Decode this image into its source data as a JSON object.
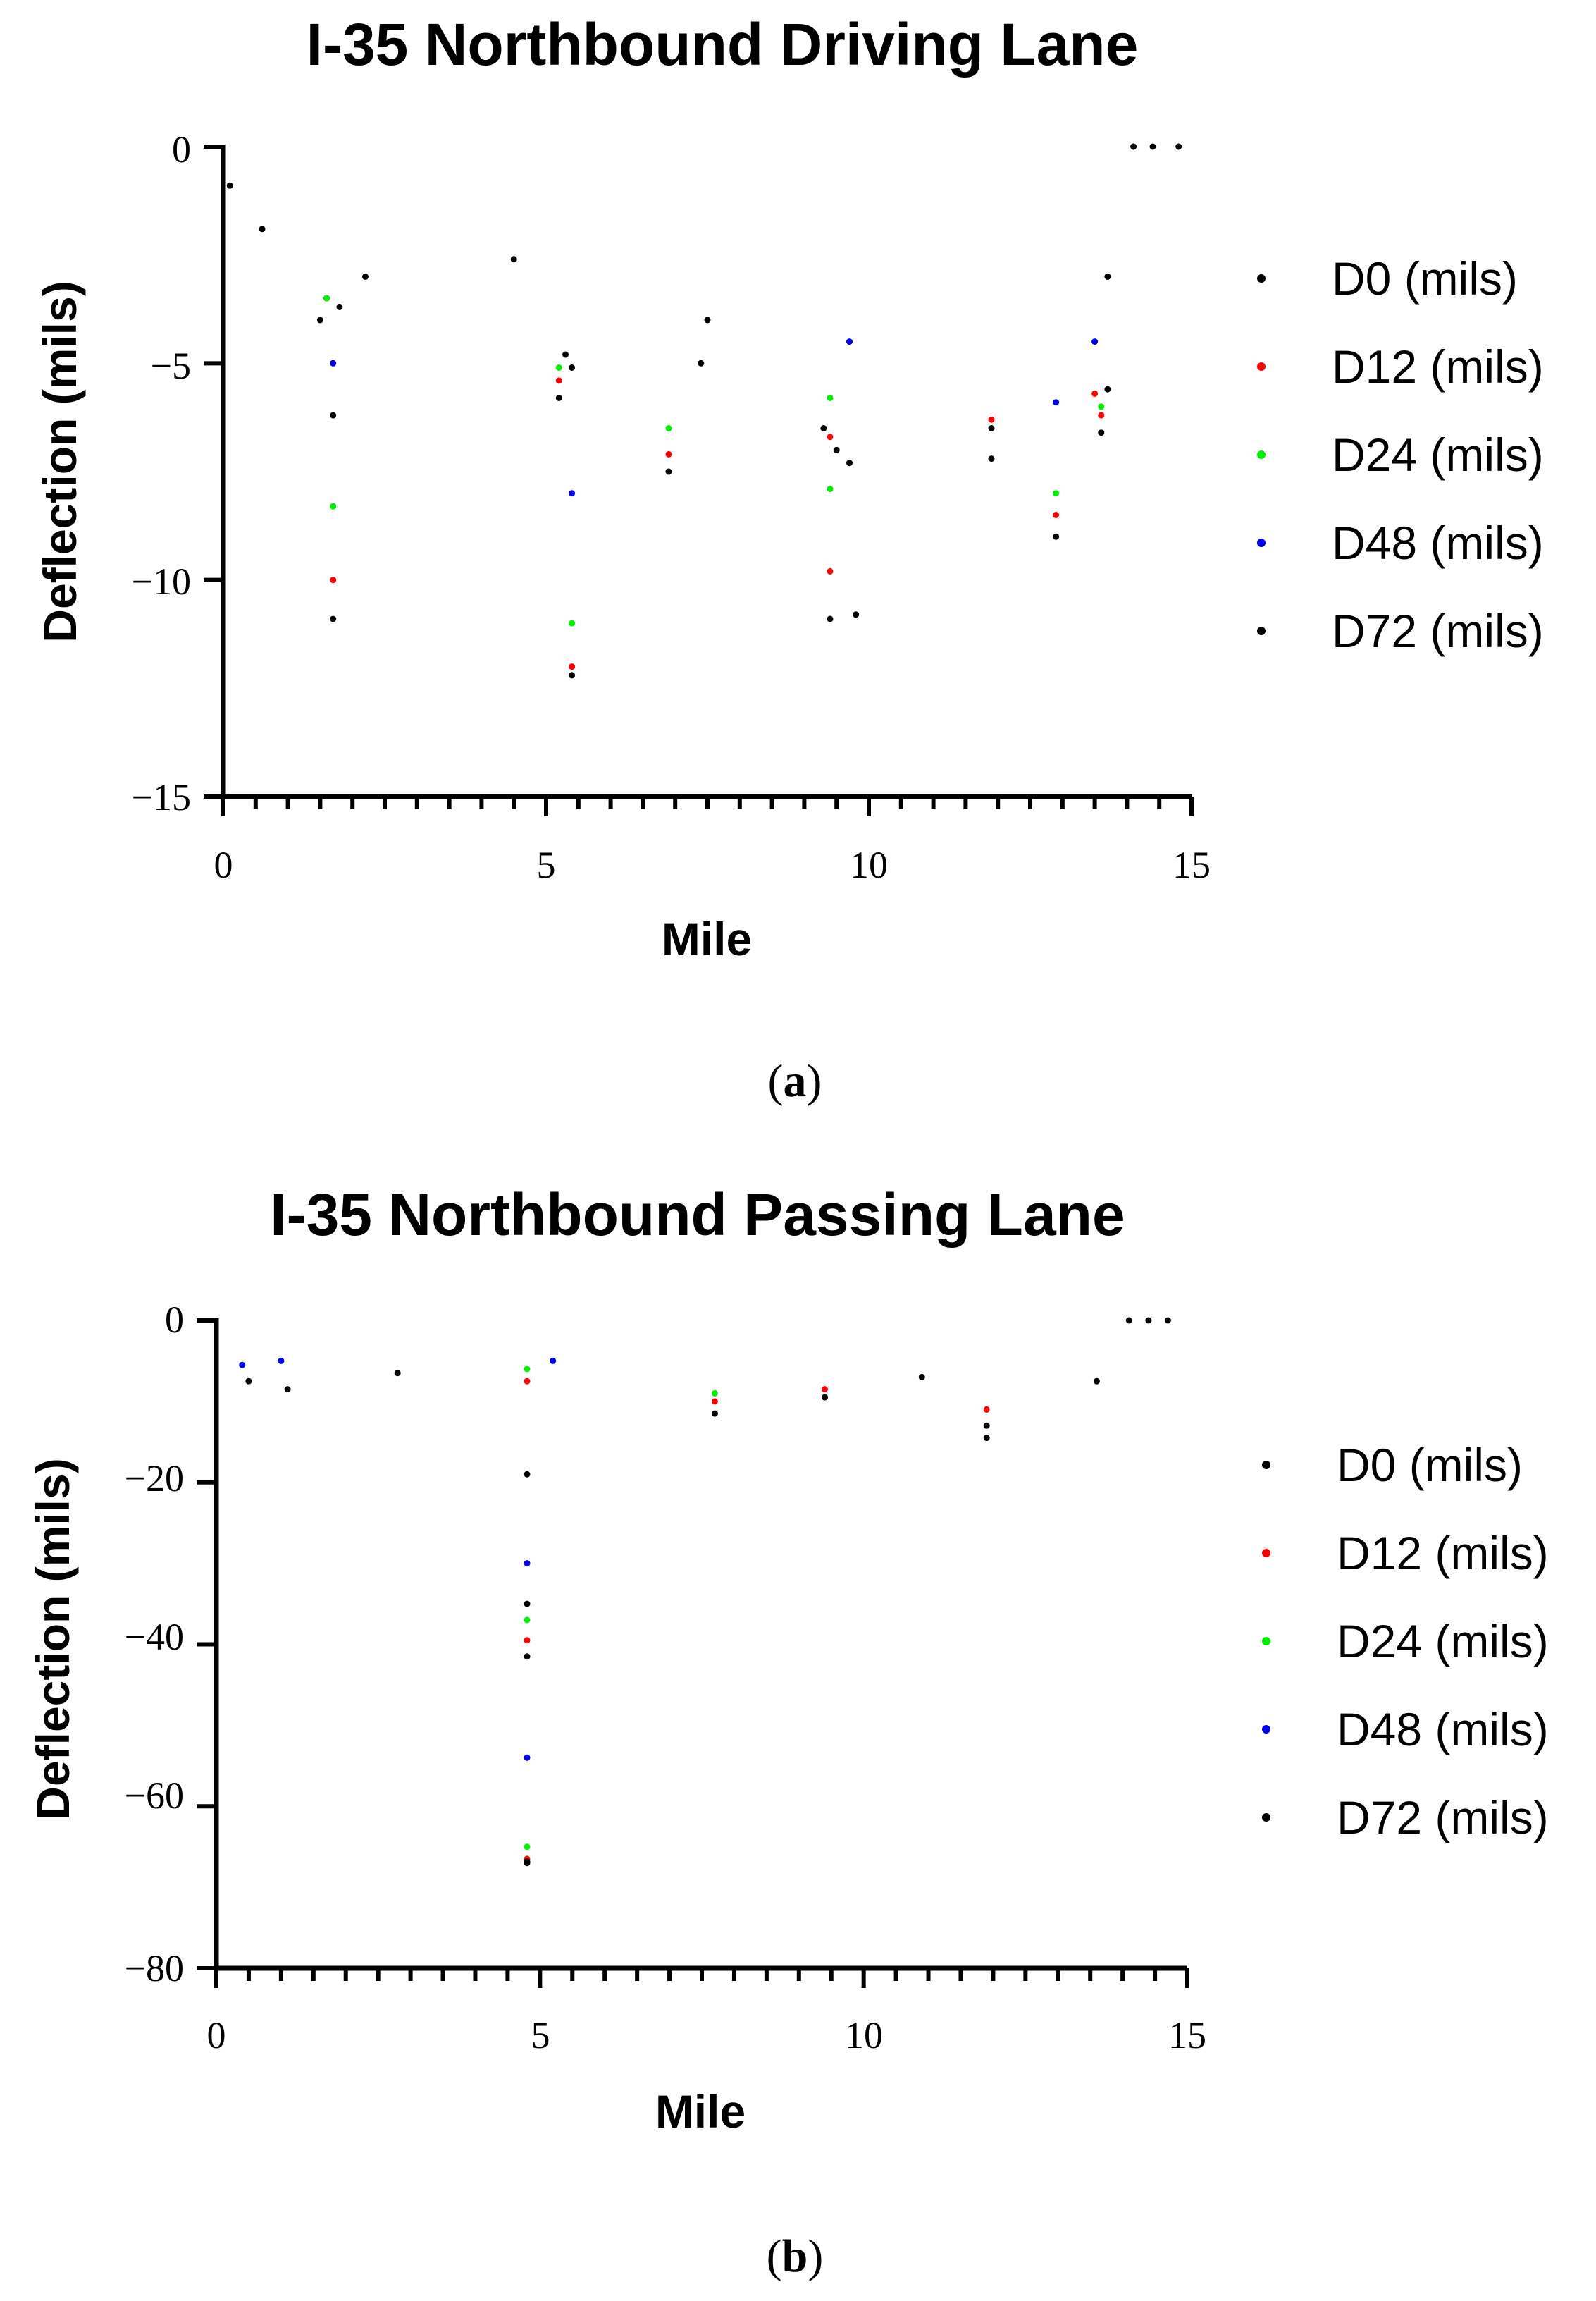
{
  "chart_data": [
    {
      "type": "scatter",
      "title": "I-35 Northbound Driving Lane",
      "xlabel": "Mile",
      "ylabel": "Deflection (mils)",
      "xlim": [
        0,
        15
      ],
      "ylim": [
        -15,
        0
      ],
      "xticks": [
        "0",
        "5",
        "10",
        "15"
      ],
      "yticks": [
        "0",
        "−5",
        "−10",
        "−15"
      ],
      "caption_letter": "a",
      "series": [
        {
          "name": "D0 (mils)",
          "color": "#000000",
          "points": [
            [
              0.1,
              -0.9
            ],
            [
              0.6,
              -1.9
            ],
            [
              1.5,
              -4.0
            ],
            [
              1.7,
              -6.2
            ],
            [
              1.7,
              -10.9
            ],
            [
              2.2,
              -3.0
            ],
            [
              4.5,
              -2.6
            ],
            [
              5.2,
              -5.8
            ],
            [
              5.4,
              -12.2
            ],
            [
              5.4,
              -5.1
            ],
            [
              6.9,
              -7.5
            ],
            [
              7.4,
              -5.0
            ],
            [
              9.4,
              -10.9
            ],
            [
              9.8,
              -10.8
            ],
            [
              9.7,
              -7.3
            ],
            [
              9.3,
              -6.5
            ],
            [
              11.9,
              -7.2
            ],
            [
              12.9,
              -9.0
            ],
            [
              13.6,
              -6.6
            ],
            [
              13.7,
              -3.0
            ],
            [
              14.8,
              0.0
            ],
            [
              14.4,
              0.0
            ],
            [
              14.1,
              0.0
            ]
          ]
        },
        {
          "name": "D12 (mils)",
          "color": "#ff0000",
          "points": [
            [
              1.6,
              -3.5
            ],
            [
              1.7,
              -5.0
            ],
            [
              1.7,
              -10.0
            ],
            [
              5.2,
              -5.4
            ],
            [
              5.4,
              -12.0
            ],
            [
              6.9,
              -7.1
            ],
            [
              9.4,
              -9.8
            ],
            [
              9.4,
              -6.7
            ],
            [
              11.9,
              -6.3
            ],
            [
              12.9,
              -8.5
            ],
            [
              13.5,
              -5.7
            ],
            [
              13.6,
              -6.2
            ]
          ]
        },
        {
          "name": "D24 (mils)",
          "color": "#00ee00",
          "points": [
            [
              1.6,
              -3.5
            ],
            [
              1.7,
              -8.3
            ],
            [
              5.2,
              -5.1
            ],
            [
              5.4,
              -11.0
            ],
            [
              6.9,
              -6.5
            ],
            [
              9.4,
              -7.9
            ],
            [
              9.4,
              -5.8
            ],
            [
              12.9,
              -8.0
            ],
            [
              13.6,
              -6.0
            ]
          ]
        },
        {
          "name": "D48 (mils)",
          "color": "#0000ee",
          "points": [
            [
              1.7,
              -5.0
            ],
            [
              5.4,
              -8.0
            ],
            [
              9.7,
              -4.5
            ],
            [
              12.9,
              -5.9
            ],
            [
              13.5,
              -4.5
            ]
          ]
        },
        {
          "name": "D72 (mils)",
          "color": "#000000",
          "points": [
            [
              1.8,
              -3.7
            ],
            [
              5.3,
              -4.8
            ],
            [
              7.5,
              -4.0
            ],
            [
              9.5,
              -7.0
            ],
            [
              11.9,
              -6.5
            ],
            [
              13.7,
              -5.6
            ]
          ]
        }
      ]
    },
    {
      "type": "scatter",
      "title": "I-35 Northbound Passing Lane",
      "xlabel": "Mile",
      "ylabel": "Deflection (mils)",
      "xlim": [
        0,
        15
      ],
      "ylim": [
        -80,
        0
      ],
      "xticks": [
        "0",
        "5",
        "10",
        "15"
      ],
      "yticks": [
        "0",
        "−20",
        "−40",
        "−60",
        "−80"
      ],
      "caption_letter": "b",
      "series": [
        {
          "name": "D0 (mils)",
          "color": "#000000",
          "points": [
            [
              4.8,
              -19.0
            ],
            [
              4.8,
              -35.0
            ],
            [
              4.8,
              -41.5
            ],
            [
              4.8,
              -67.0
            ],
            [
              7.7,
              -11.5
            ],
            [
              11.9,
              -14.5
            ],
            [
              11.9,
              -13.0
            ],
            [
              0.5,
              -7.5
            ],
            [
              1.1,
              -8.5
            ],
            [
              2.8,
              -6.5
            ],
            [
              9.4,
              -9.5
            ],
            [
              14.4,
              0.0
            ],
            [
              14.1,
              0.0
            ],
            [
              14.7,
              0.0
            ]
          ]
        },
        {
          "name": "D12 (mils)",
          "color": "#ff0000",
          "points": [
            [
              4.8,
              -39.5
            ],
            [
              4.8,
              -66.5
            ],
            [
              7.7,
              -10.0
            ],
            [
              11.9,
              -11.0
            ],
            [
              4.8,
              -7.5
            ],
            [
              9.4,
              -8.5
            ]
          ]
        },
        {
          "name": "D24 (mils)",
          "color": "#00ee00",
          "points": [
            [
              4.8,
              -37.0
            ],
            [
              4.8,
              -65.0
            ],
            [
              4.8,
              -6.0
            ],
            [
              7.7,
              -9.0
            ]
          ]
        },
        {
          "name": "D48 (mils)",
          "color": "#0000ee",
          "points": [
            [
              4.8,
              -30.0
            ],
            [
              4.8,
              -54.0
            ],
            [
              5.2,
              -5.0
            ],
            [
              0.4,
              -5.5
            ],
            [
              1.0,
              -5.0
            ]
          ]
        },
        {
          "name": "D72 (mils)",
          "color": "#000000",
          "points": [
            [
              4.8,
              -66.8
            ],
            [
              13.6,
              -7.5
            ],
            [
              10.9,
              -7.0
            ]
          ]
        }
      ]
    }
  ]
}
